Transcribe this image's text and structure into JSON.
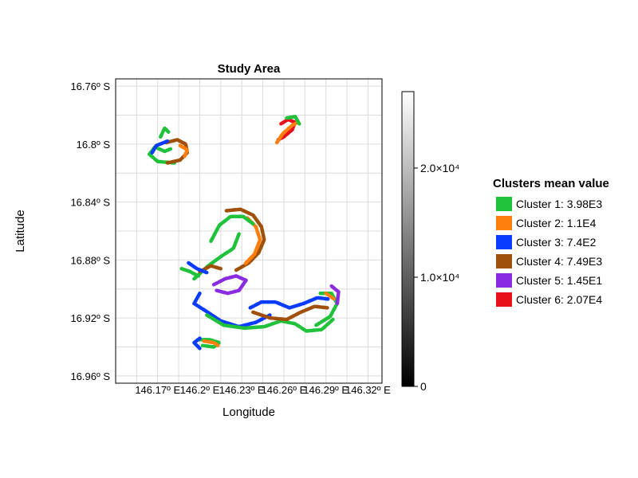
{
  "chart_data": {
    "type": "scatter",
    "title": "Study Area",
    "xlabel": "Longitude",
    "ylabel": "Latitude",
    "xlim": [
      146.14,
      146.33
    ],
    "ylim": [
      16.965,
      16.755
    ],
    "y_reversed": true,
    "x_ticks": [
      {
        "value": 146.17,
        "label": "146.17º E"
      },
      {
        "value": 146.2,
        "label": "146.2º E"
      },
      {
        "value": 146.23,
        "label": "146.23º E"
      },
      {
        "value": 146.26,
        "label": "146.26º E"
      },
      {
        "value": 146.29,
        "label": "146.29º E"
      },
      {
        "value": 146.32,
        "label": "146.32º E"
      }
    ],
    "y_ticks": [
      {
        "value": 16.76,
        "label": "16.76º S"
      },
      {
        "value": 16.8,
        "label": "16.8º S"
      },
      {
        "value": 16.84,
        "label": "16.84º S"
      },
      {
        "value": 16.88,
        "label": "16.88º S"
      },
      {
        "value": 16.92,
        "label": "16.92º S"
      },
      {
        "value": 16.96,
        "label": "16.96º S"
      }
    ],
    "grid": true,
    "colorbar": {
      "min": 0,
      "max": 27000,
      "colormap": "grayscale",
      "ticks": [
        {
          "value": 0,
          "label": "0"
        },
        {
          "value": 10000,
          "label": "1.0×10⁴"
        },
        {
          "value": 20000,
          "label": "2.0×10⁴"
        }
      ]
    },
    "legend": {
      "title": "Clusters mean value",
      "position": "right",
      "entries": [
        {
          "label": "Cluster 1: 3.98E3",
          "color": "#1fc23a"
        },
        {
          "label": "Cluster 2: 1.1E4",
          "color": "#ff7f0e"
        },
        {
          "label": "Cluster 3: 7.4E2",
          "color": "#0a3cff"
        },
        {
          "label": "Cluster 4: 7.49E3",
          "color": "#a0500a"
        },
        {
          "label": "Cluster 5: 1.45E1",
          "color": "#8a2be2"
        },
        {
          "label": "Cluster 6: 2.07E4",
          "color": "#e8101a"
        }
      ]
    },
    "reef_features": [
      {
        "cluster": 1,
        "points": [
          [
            146.182,
            16.813
          ],
          [
            146.17,
            16.812
          ],
          [
            146.164,
            16.807
          ],
          [
            146.168,
            16.802
          ],
          [
            146.175,
            16.805
          ],
          [
            146.18,
            16.803
          ]
        ]
      },
      {
        "cluster": 4,
        "points": [
          [
            146.176,
            16.799
          ],
          [
            146.184,
            16.797
          ],
          [
            146.19,
            16.8
          ],
          [
            146.191,
            16.806
          ],
          [
            146.186,
            16.811
          ],
          [
            146.177,
            16.813
          ]
        ]
      },
      {
        "cluster": 3,
        "points": [
          [
            146.166,
            16.806
          ],
          [
            146.169,
            16.801
          ],
          [
            146.177,
            16.798
          ]
        ]
      },
      {
        "cluster": 2,
        "points": [
          [
            146.186,
            16.801
          ],
          [
            146.191,
            16.804
          ],
          [
            146.189,
            16.809
          ]
        ]
      },
      {
        "cluster": 1,
        "points": [
          [
            146.172,
            16.795
          ],
          [
            146.175,
            16.789
          ],
          [
            146.178,
            16.792
          ]
        ]
      },
      {
        "cluster": 6,
        "points": [
          [
            146.258,
            16.786
          ],
          [
            146.263,
            16.783
          ],
          [
            146.268,
            16.785
          ],
          [
            146.266,
            16.79
          ],
          [
            146.26,
            16.795
          ],
          [
            146.256,
            16.797
          ]
        ]
      },
      {
        "cluster": 2,
        "points": [
          [
            146.255,
            16.799
          ],
          [
            146.259,
            16.793
          ],
          [
            146.266,
            16.787
          ],
          [
            146.27,
            16.785
          ]
        ]
      },
      {
        "cluster": 1,
        "points": [
          [
            146.262,
            16.782
          ],
          [
            146.268,
            16.781
          ],
          [
            146.271,
            16.786
          ]
        ]
      },
      {
        "cluster": 4,
        "points": [
          [
            146.219,
            16.846
          ],
          [
            146.229,
            16.845
          ],
          [
            146.238,
            16.849
          ],
          [
            146.244,
            16.857
          ],
          [
            146.246,
            16.866
          ],
          [
            146.242,
            16.875
          ],
          [
            146.235,
            16.882
          ],
          [
            146.226,
            16.887
          ]
        ]
      },
      {
        "cluster": 2,
        "points": [
          [
            146.234,
            16.851
          ],
          [
            146.24,
            16.857
          ],
          [
            146.243,
            16.866
          ],
          [
            146.239,
            16.876
          ],
          [
            146.232,
            16.883
          ]
        ]
      },
      {
        "cluster": 1,
        "points": [
          [
            146.208,
            16.867
          ],
          [
            146.214,
            16.856
          ],
          [
            146.222,
            16.85
          ],
          [
            146.231,
            16.85
          ],
          [
            146.238,
            16.855
          ]
        ]
      },
      {
        "cluster": 1,
        "points": [
          [
            146.196,
            16.893
          ],
          [
            146.206,
            16.884
          ],
          [
            146.216,
            16.877
          ],
          [
            146.224,
            16.872
          ],
          [
            146.228,
            16.862
          ]
        ]
      },
      {
        "cluster": 3,
        "points": [
          [
            146.2,
            16.903
          ],
          [
            146.196,
            16.91
          ],
          [
            146.204,
            16.915
          ],
          [
            146.215,
            16.922
          ],
          [
            146.228,
            16.926
          ],
          [
            146.24,
            16.923
          ],
          [
            146.25,
            16.918
          ]
        ]
      },
      {
        "cluster": 1,
        "points": [
          [
            146.205,
            16.918
          ],
          [
            146.217,
            16.925
          ],
          [
            146.232,
            16.927
          ],
          [
            146.246,
            16.926
          ],
          [
            146.258,
            16.922
          ],
          [
            146.268,
            16.924
          ],
          [
            146.276,
            16.929
          ],
          [
            146.287,
            16.928
          ],
          [
            146.295,
            16.921
          ]
        ]
      },
      {
        "cluster": 4,
        "points": [
          [
            146.238,
            16.916
          ],
          [
            146.25,
            16.92
          ],
          [
            146.262,
            16.921
          ],
          [
            146.272,
            16.916
          ],
          [
            146.282,
            16.912
          ],
          [
            146.291,
            16.913
          ]
        ]
      },
      {
        "cluster": 3,
        "points": [
          [
            146.236,
            16.913
          ],
          [
            146.244,
            16.909
          ],
          [
            146.254,
            16.909
          ],
          [
            146.264,
            16.913
          ],
          [
            146.274,
            16.91
          ],
          [
            146.284,
            16.906
          ],
          [
            146.292,
            16.907
          ]
        ]
      },
      {
        "cluster": 1,
        "points": [
          [
            146.283,
            16.925
          ],
          [
            146.293,
            16.919
          ],
          [
            146.298,
            16.91
          ],
          [
            146.294,
            16.903
          ],
          [
            146.286,
            16.903
          ]
        ]
      },
      {
        "cluster": 5,
        "points": [
          [
            146.294,
            16.898
          ],
          [
            146.299,
            16.902
          ],
          [
            146.298,
            16.911
          ]
        ]
      },
      {
        "cluster": 2,
        "points": [
          [
            146.29,
            16.903
          ],
          [
            146.296,
            16.907
          ]
        ]
      },
      {
        "cluster": 5,
        "points": [
          [
            146.21,
            16.897
          ],
          [
            146.218,
            16.893
          ],
          [
            146.226,
            16.891
          ],
          [
            146.233,
            16.894
          ],
          [
            146.228,
            16.901
          ],
          [
            146.22,
            16.903
          ],
          [
            146.212,
            16.901
          ]
        ]
      },
      {
        "cluster": 4,
        "points": [
          [
            146.2,
            16.888
          ],
          [
            146.208,
            16.884
          ],
          [
            146.215,
            16.886
          ]
        ]
      },
      {
        "cluster": 3,
        "points": [
          [
            146.192,
            16.882
          ],
          [
            146.198,
            16.886
          ],
          [
            146.206,
            16.889
          ]
        ]
      },
      {
        "cluster": 1,
        "points": [
          [
            146.187,
            16.886
          ],
          [
            146.193,
            16.888
          ],
          [
            146.199,
            16.891
          ]
        ]
      },
      {
        "cluster": 1,
        "points": [
          [
            146.199,
            16.935
          ],
          [
            146.207,
            16.935
          ],
          [
            146.214,
            16.937
          ],
          [
            146.21,
            16.94
          ],
          [
            146.202,
            16.939
          ]
        ]
      },
      {
        "cluster": 2,
        "points": [
          [
            146.203,
            16.936
          ],
          [
            146.21,
            16.937
          ],
          [
            146.213,
            16.939
          ]
        ]
      },
      {
        "cluster": 3,
        "points": [
          [
            146.2,
            16.934
          ],
          [
            146.196,
            16.937
          ],
          [
            146.2,
            16.941
          ]
        ]
      }
    ]
  }
}
